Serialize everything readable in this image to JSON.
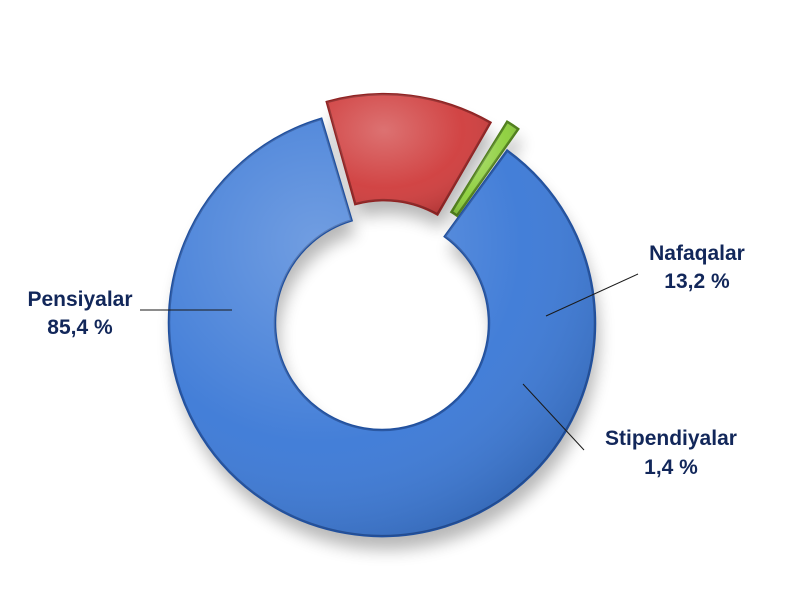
{
  "chart_data": {
    "type": "pie",
    "donut": true,
    "title": "",
    "unit": "%",
    "legend": "none",
    "exploded": [
      "Nafaqalar",
      "Stipendiyalar"
    ],
    "series": [
      {
        "values": [
          85.4,
          13.2,
          1.4
        ],
        "categories": [
          "Pensiyalar",
          "Nafaqalar",
          "Stipendiyalar"
        ]
      }
    ],
    "slices": [
      {
        "name": "Pensiyalar",
        "value": 85.4,
        "value_label": "85,4 %",
        "color": "#3a78d6",
        "edge_color": "#1f4f9e"
      },
      {
        "name": "Nafaqalar",
        "value": 13.2,
        "value_label": "13,2 %",
        "color": "#cf3b3b",
        "edge_color": "#8f2222"
      },
      {
        "name": "Stipendiyalar",
        "value": 1.4,
        "value_label": "1,4 %",
        "color": "#8ccf3a",
        "edge_color": "#4f7f1a"
      }
    ],
    "label_color": "#12275a"
  }
}
